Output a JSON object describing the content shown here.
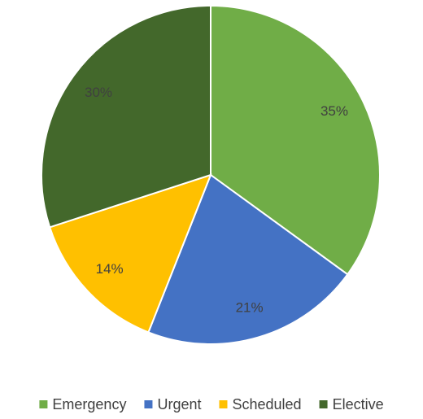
{
  "chart_data": {
    "type": "pie",
    "categories": [
      "Emergency",
      "Urgent",
      "Scheduled",
      "Elective"
    ],
    "values": [
      35,
      21,
      14,
      30
    ],
    "value_labels": [
      "35%",
      "21%",
      "14%",
      "30%"
    ],
    "colors": [
      "#70ad47",
      "#4472c4",
      "#ffc000",
      "#43682b"
    ],
    "legend": "bottom"
  }
}
